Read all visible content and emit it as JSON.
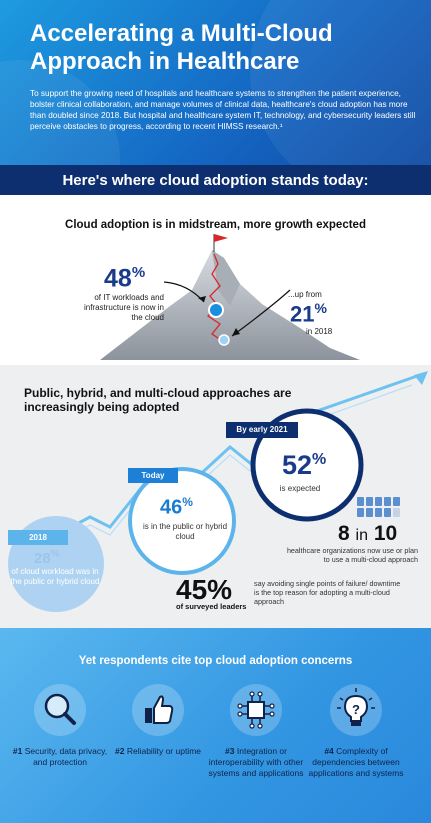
{
  "header": {
    "title": "Accelerating a Multi-Cloud Approach in Healthcare",
    "intro": "To support the growing need of hospitals and healthcare systems to strengthen the patient experience, bolster clinical collaboration, and manage volumes of clinical data, healthcare's cloud adoption has more than doubled since 2018. But hospital and healthcare system IT, technology, and cybersecurity leaders still perceive obstacles to progress, according to recent HIMSS research.¹"
  },
  "band": {
    "text": "Here's where cloud adoption stands today:"
  },
  "section1": {
    "title": "Cloud adoption is in midstream, more growth expected",
    "current": {
      "value": "48",
      "unit": "%",
      "label": "of IT workloads and infrastructure is now in the cloud"
    },
    "previous": {
      "prefix": "...up from",
      "value": "21",
      "unit": "%",
      "label": "in 2018"
    }
  },
  "section2": {
    "title": "Public, hybrid, and multi-cloud approaches are increasingly being adopted",
    "y2018": {
      "tag": "2018",
      "value": "28",
      "unit": "%",
      "label": "of cloud workload was in the public or hybrid cloud"
    },
    "today": {
      "tag": "Today",
      "value": "46",
      "unit": "%",
      "label": "is in the public or hybrid cloud"
    },
    "early2021": {
      "tag": "By early 2021",
      "value": "52",
      "unit": "%",
      "label": "is expected"
    },
    "eight_in_ten": {
      "n": "8",
      "in": "in",
      "d": "10",
      "label": "healthcare organizations now use or plan to use a multi-cloud approach"
    },
    "leaders": {
      "value": "45%",
      "label": "of surveyed leaders",
      "desc": "say avoiding single points of failure/ downtime is the top reason for adopting a multi-cloud approach"
    }
  },
  "section3": {
    "title": "Yet respondents cite top cloud adoption concerns",
    "concerns": [
      {
        "rank": "#1",
        "text": "Security, data privacy, and protection",
        "icon": "magnifier-icon"
      },
      {
        "rank": "#2",
        "text": "Reliability or uptime",
        "icon": "thumbs-up-icon"
      },
      {
        "rank": "#3",
        "text": "Integration or interoperability with other systems and applications",
        "icon": "network-chip-icon"
      },
      {
        "rank": "#4",
        "text": "Complexity of dependencies between applications and systems",
        "icon": "lightbulb-question-icon"
      }
    ]
  },
  "colors": {
    "navy": "#0d2f6f",
    "blue": "#1a7bd0",
    "sky": "#5db4ea",
    "dark_blue": "#1a3b8c"
  }
}
